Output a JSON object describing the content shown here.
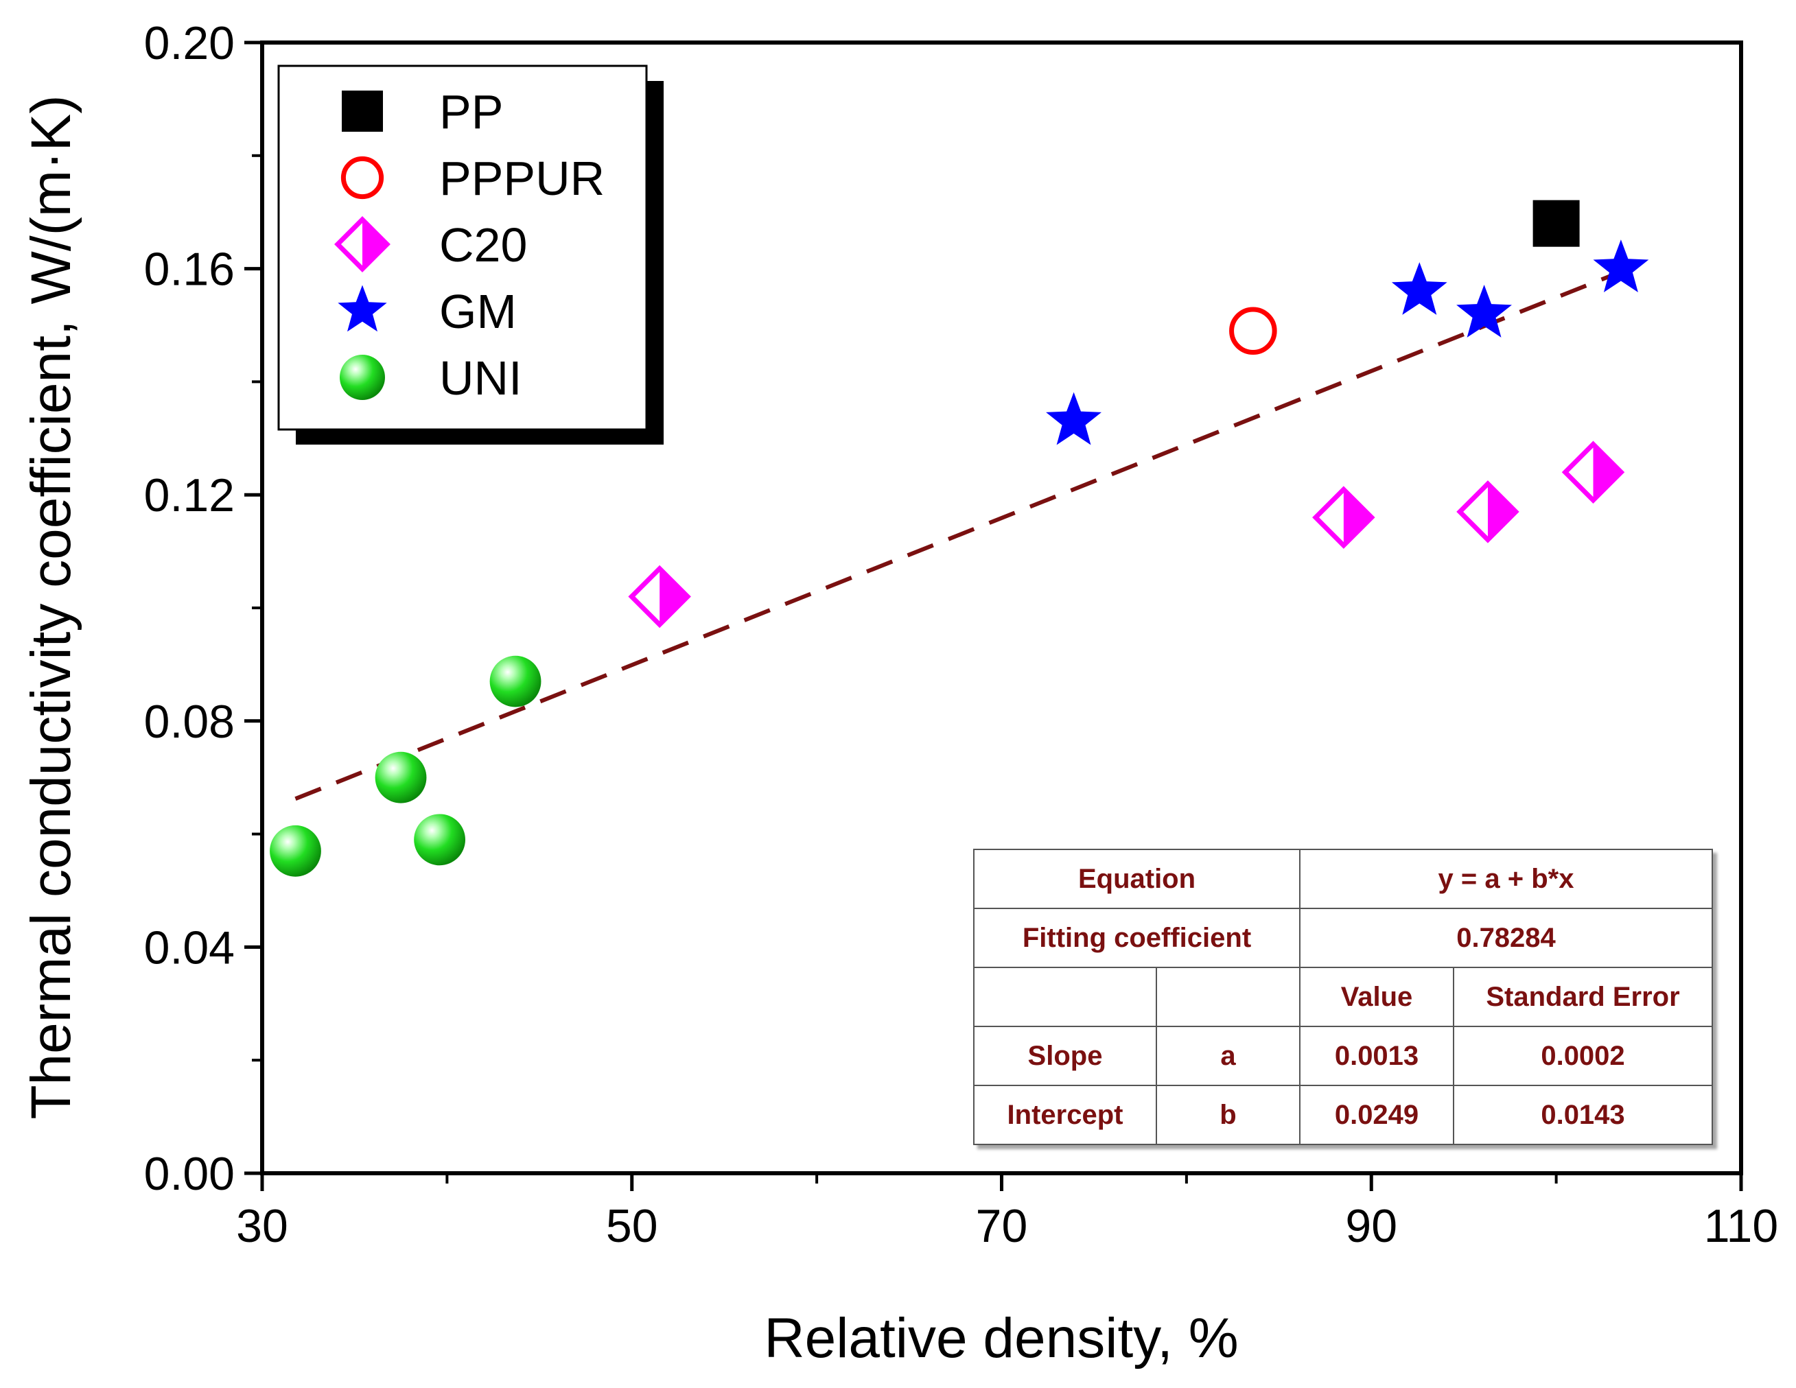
{
  "chart_data": {
    "type": "scatter",
    "xlabel": "Relative density, %",
    "ylabel": "Thermal conductivity coefficient,  W/(m·K)",
    "xlim": [
      30,
      110
    ],
    "ylim": [
      0,
      0.2
    ],
    "x_ticks": [
      "30",
      "50",
      "70",
      "90",
      "110"
    ],
    "y_ticks": [
      "0.00",
      "0.04",
      "0.08",
      "0.12",
      "0.16",
      "0.20"
    ],
    "legend": [
      "PP",
      "PPPUR",
      "C20",
      "GM",
      "UNI"
    ],
    "series": [
      {
        "name": "PP",
        "marker": "filled-square",
        "color": "#000000",
        "points": [
          [
            100,
            0.168
          ]
        ]
      },
      {
        "name": "PPPUR",
        "marker": "open-circle",
        "color": "#ff0000",
        "points": [
          [
            83.6,
            0.149
          ]
        ]
      },
      {
        "name": "C20",
        "marker": "half-diamond",
        "color": "#ff00ff",
        "points": [
          [
            51.5,
            0.102
          ],
          [
            88.5,
            0.116
          ],
          [
            96.3,
            0.117
          ],
          [
            102.0,
            0.124
          ]
        ]
      },
      {
        "name": "GM",
        "marker": "star",
        "color": "#0000ff",
        "points": [
          [
            73.9,
            0.133
          ],
          [
            92.6,
            0.156
          ],
          [
            96.1,
            0.152
          ],
          [
            103.5,
            0.16
          ]
        ]
      },
      {
        "name": "UNI",
        "marker": "sphere",
        "color": "#11dd11",
        "points": [
          [
            31.8,
            0.057
          ],
          [
            37.5,
            0.07
          ],
          [
            39.6,
            0.059
          ],
          [
            43.7,
            0.087
          ]
        ]
      }
    ],
    "fit_line": {
      "x_start": 31.8,
      "x_end": 103.5,
      "intercept": 0.0249,
      "slope": 0.0013,
      "color": "#7a1010",
      "style": "dashed"
    },
    "fit_table": {
      "equation_label": "Equation",
      "equation": "y = a + b*x",
      "fitting_label": "Fitting coefficient",
      "fitting_value": "0.78284",
      "value_header": "Value",
      "error_header": "Standard Error",
      "rows": [
        {
          "name": "Slope",
          "symbol": "a",
          "value": "0.0013",
          "error": "0.0002"
        },
        {
          "name": "Intercept",
          "symbol": "b",
          "value": "0.0249",
          "error": "0.0143"
        }
      ]
    }
  }
}
